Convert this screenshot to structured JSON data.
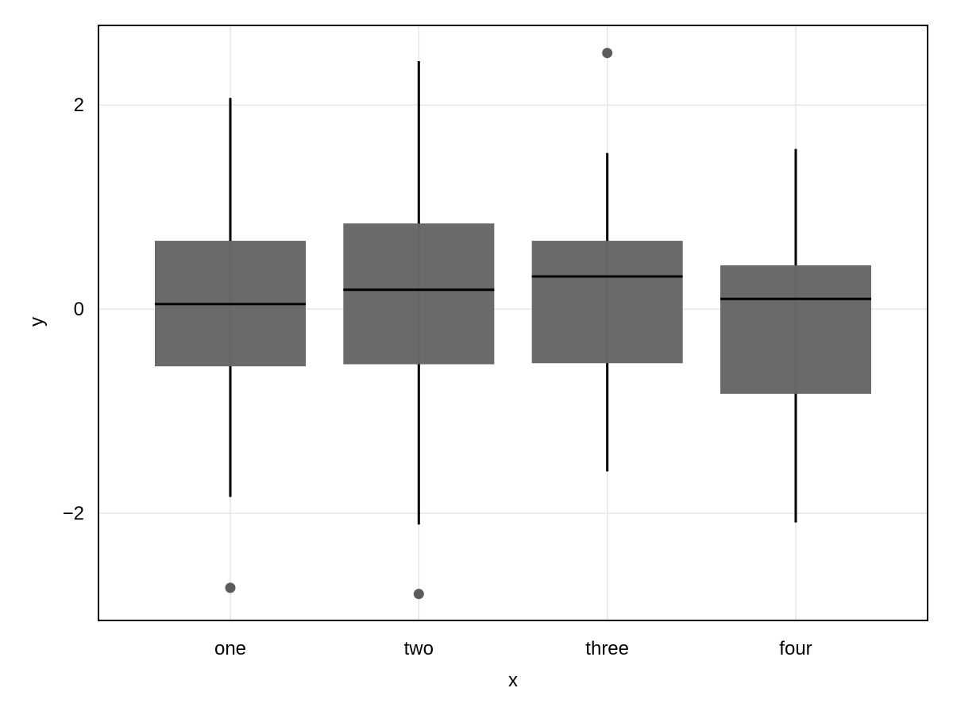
{
  "chart_data": {
    "type": "box",
    "categories": [
      "one",
      "two",
      "three",
      "four"
    ],
    "boxes": [
      {
        "category": "one",
        "whisker_low": -1.84,
        "q1": -0.56,
        "median": 0.05,
        "q3": 0.67,
        "whisker_high": 2.07,
        "outliers": [
          -2.73
        ]
      },
      {
        "category": "two",
        "whisker_low": -2.11,
        "q1": -0.54,
        "median": 0.19,
        "q3": 0.84,
        "whisker_high": 2.43,
        "outliers": [
          -2.79
        ]
      },
      {
        "category": "three",
        "whisker_low": -1.59,
        "q1": -0.53,
        "median": 0.32,
        "q3": 0.67,
        "whisker_high": 1.53,
        "outliers": [
          2.51
        ]
      },
      {
        "category": "four",
        "whisker_low": -2.09,
        "q1": -0.83,
        "median": 0.1,
        "q3": 0.43,
        "whisker_high": 1.57,
        "outliers": []
      }
    ],
    "xlabel": "x",
    "ylabel": "y",
    "ylim": [
      -3.05,
      2.78
    ],
    "yticks": [
      -2,
      0,
      2
    ],
    "ytick_labels": [
      "−2",
      "0",
      "2"
    ],
    "grid": true,
    "colors": {
      "box_fill": "#676767",
      "median_line": "#000000",
      "whisker": "#000000",
      "outlier": "#5c5c5c",
      "grid": "#e6e6e6",
      "frame": "#000000"
    }
  }
}
